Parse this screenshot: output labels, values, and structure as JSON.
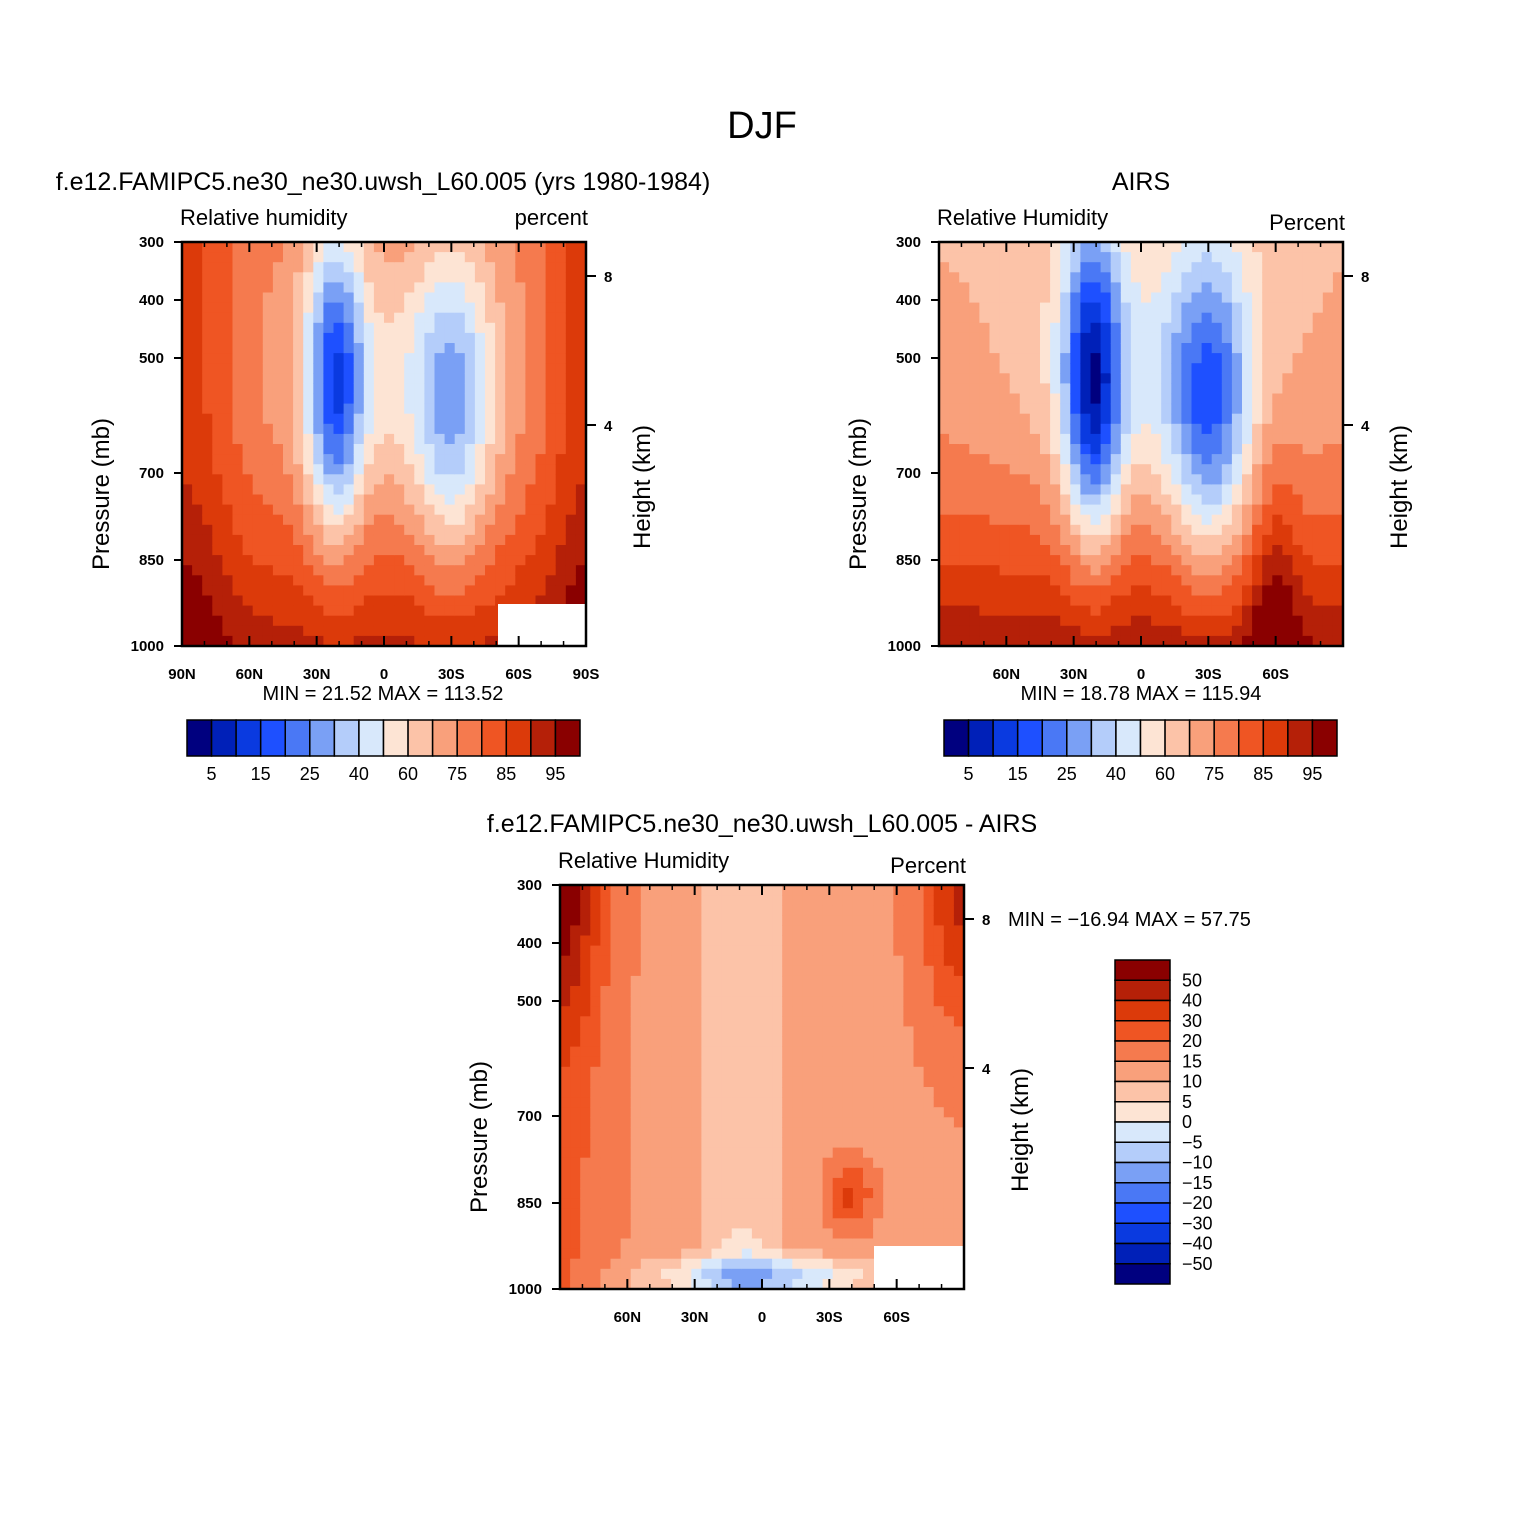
{
  "figure": {
    "title": "DJF"
  },
  "chart_data": [
    {
      "type": "heatmap",
      "title": "f.e12.FAMIPC5.ne30_ne30.uwsh_L60.005 (yrs 1980-1984)",
      "subtitle_left": "Relative humidity",
      "subtitle_right": "percent",
      "ylabel": "Pressure (mb)",
      "y2label": "Height (km)",
      "stats": "MIN =   21.52   MAX = 113.52",
      "x_ticks": [
        "90N",
        "60N",
        "30N",
        "0",
        "30S",
        "60S",
        "90S"
      ],
      "y_ticks": [
        "300",
        "400",
        "500",
        "700",
        "850",
        "1000"
      ],
      "y2_ticks": [
        "8",
        "4"
      ],
      "ylim": [
        300,
        1000
      ],
      "x_range": [
        90,
        -90
      ],
      "colorbar": {
        "orientation": "horizontal",
        "levels": [
          5,
          10,
          15,
          20,
          25,
          30,
          40,
          50,
          60,
          70,
          75,
          80,
          85,
          90,
          95
        ],
        "tick_labels": [
          "5",
          "15",
          "25",
          "40",
          "60",
          "75",
          "85",
          "95"
        ]
      },
      "field_description": "Moist >85% in polar lower troposphere, dry (<30%) minimum near 20N at 500 mb, secondary dry minimum near 25S, moist boundary layer; missing data at high southern latitudes near surface"
    },
    {
      "type": "heatmap",
      "title": "AIRS",
      "subtitle_left": "Relative Humidity",
      "subtitle_right": "Percent",
      "ylabel": "Pressure (mb)",
      "y2label": "Height (km)",
      "stats": "MIN =   18.78   MAX = 115.94",
      "x_ticks": [
        "60N",
        "30N",
        "0",
        "30S",
        "60S"
      ],
      "y_ticks": [
        "300",
        "400",
        "500",
        "700",
        "850",
        "1000"
      ],
      "y2_ticks": [
        "8",
        "4"
      ],
      "ylim": [
        300,
        1000
      ],
      "x_range": [
        90,
        -90
      ],
      "colorbar": {
        "orientation": "horizontal",
        "levels": [
          5,
          10,
          15,
          20,
          25,
          30,
          40,
          50,
          60,
          70,
          75,
          80,
          85,
          90,
          95
        ],
        "tick_labels": [
          "5",
          "15",
          "25",
          "40",
          "60",
          "75",
          "85",
          "95"
        ]
      },
      "field_description": "Drier overall; minimum (~20%) near 20N at 500 mb, secondary near 25S, moist (>95%) near 60S at the surface"
    },
    {
      "type": "heatmap",
      "title": "f.e12.FAMIPC5.ne30_ne30.uwsh_L60.005 - AIRS",
      "subtitle_left": "Relative Humidity",
      "subtitle_right": "Percent",
      "ylabel": "Pressure (mb)",
      "y2label": "Height (km)",
      "stats": "MIN = −16.94   MAX =   57.75",
      "x_ticks": [
        "60N",
        "30N",
        "0",
        "30S",
        "60S"
      ],
      "y_ticks": [
        "300",
        "400",
        "500",
        "700",
        "850",
        "1000"
      ],
      "y2_ticks": [
        "8",
        "4"
      ],
      "ylim": [
        300,
        1000
      ],
      "x_range": [
        90,
        -90
      ],
      "colorbar": {
        "orientation": "vertical",
        "levels": [
          50,
          40,
          30,
          20,
          15,
          10,
          5,
          0,
          -5,
          -10,
          -15,
          -20,
          -30,
          -40,
          -50
        ],
        "tick_labels": [
          "50",
          "40",
          "30",
          "20",
          "15",
          "10",
          "5",
          "0",
          "−5",
          "−10",
          "−15",
          "−20",
          "−30",
          "−40",
          "−50"
        ]
      },
      "field_description": "Model - AIRS difference positive almost everywhere (+10 to +30), largest near the poles aloft (+40 to +50), slight negative values in the tropical/subtropical boundary layer near 1000 mb"
    }
  ],
  "colors": {
    "rh_palette": [
      "#00007f",
      "#0020b8",
      "#0a3ae0",
      "#1e50ff",
      "#4a78f5",
      "#7aa0f5",
      "#b4cdfa",
      "#d8e8fb",
      "#fde4d4",
      "#fcc3a8",
      "#f9a07b",
      "#f57a4e",
      "#ef5523",
      "#dc3a0a",
      "#b52008",
      "#8a0000"
    ],
    "diff_palette": [
      "#00007f",
      "#0020b8",
      "#0a3ae0",
      "#1e50ff",
      "#4a78f5",
      "#7aa0f5",
      "#b4cdfa",
      "#d8e8fb",
      "#fde4d4",
      "#fcc3a8",
      "#f9a07b",
      "#f57a4e",
      "#ef5523",
      "#dc3a0a",
      "#b52008",
      "#8a0000"
    ]
  }
}
